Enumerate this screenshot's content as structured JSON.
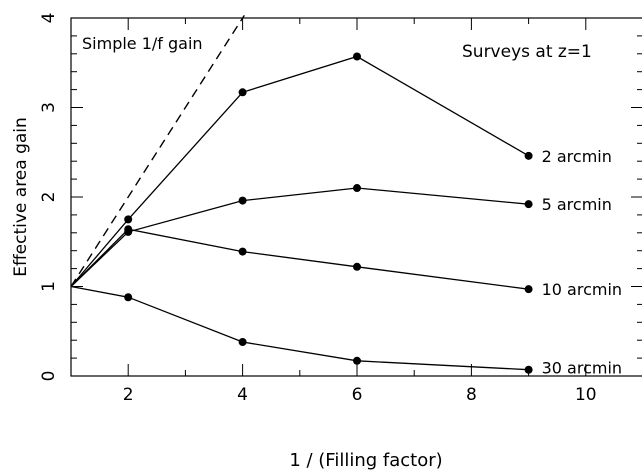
{
  "chart_data": {
    "type": "line",
    "title": "",
    "xlabel": "1 / (Filling factor)",
    "ylabel": "Effective area gain",
    "xlim": [
      1,
      11
    ],
    "ylim": [
      0,
      4
    ],
    "x_ticks": [
      2,
      4,
      6,
      8,
      10
    ],
    "y_ticks": [
      0,
      1,
      2,
      3,
      4
    ],
    "x_tick_labels": [
      "2",
      "4",
      "6",
      "8",
      "10"
    ],
    "y_tick_labels": [
      "0",
      "1",
      "2",
      "3",
      "4"
    ],
    "grid": false,
    "annotations": {
      "top_left": "Simple 1/f gain",
      "top_right": "Surveys at z=1"
    },
    "reference_line": {
      "x": [
        1,
        4.03
      ],
      "y": [
        1,
        4.03
      ],
      "style": "dashed"
    },
    "series": [
      {
        "name": "2 arcmin",
        "x": [
          1,
          2,
          4,
          6,
          9
        ],
        "y": [
          1.0,
          1.75,
          3.17,
          3.57,
          2.46
        ]
      },
      {
        "name": "5 arcmin",
        "x": [
          1,
          2,
          4,
          6,
          9
        ],
        "y": [
          1.0,
          1.61,
          1.96,
          2.1,
          1.92
        ]
      },
      {
        "name": "10 arcmin",
        "x": [
          1,
          2,
          4,
          6,
          9
        ],
        "y": [
          1.0,
          1.64,
          1.39,
          1.22,
          0.97
        ]
      },
      {
        "name": "30 arcmin",
        "x": [
          1,
          2,
          4,
          6,
          9
        ],
        "y": [
          1.0,
          0.88,
          0.38,
          0.17,
          0.07
        ]
      }
    ]
  }
}
